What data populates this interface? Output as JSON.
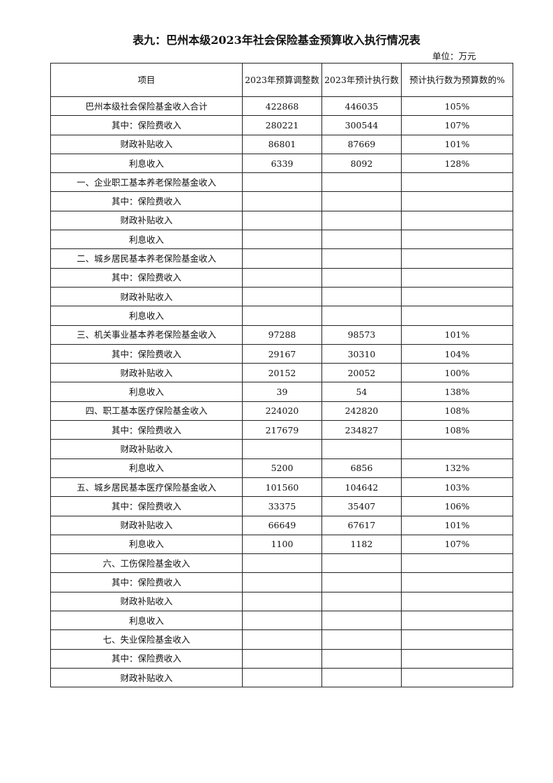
{
  "title": "表九：巴州本级2023年社会保险基金预算收入执行情况表",
  "unit": "单位：万元",
  "table": {
    "headers": [
      "项目",
      "2023年预算调整数",
      "2023年预计执行数",
      "预计执行数为预算数的%"
    ],
    "rows": [
      [
        "巴州本级社会保险基金收入合计",
        "422868",
        "446035",
        "105%"
      ],
      [
        "其中：保险费收入",
        "280221",
        "300544",
        "107%"
      ],
      [
        "财政补贴收入",
        "86801",
        "87669",
        "101%"
      ],
      [
        "利息收入",
        "6339",
        "8092",
        "128%"
      ],
      [
        "一、企业职工基本养老保险基金收入",
        "",
        "",
        ""
      ],
      [
        "其中：保险费收入",
        "",
        "",
        ""
      ],
      [
        "财政补贴收入",
        "",
        "",
        ""
      ],
      [
        "利息收入",
        "",
        "",
        ""
      ],
      [
        "二、城乡居民基本养老保险基金收入",
        "",
        "",
        ""
      ],
      [
        "其中：保险费收入",
        "",
        "",
        ""
      ],
      [
        "财政补贴收入",
        "",
        "",
        ""
      ],
      [
        "利息收入",
        "",
        "",
        ""
      ],
      [
        "三、机关事业基本养老保险基金收入",
        "97288",
        "98573",
        "101%"
      ],
      [
        "其中：保险费收入",
        "29167",
        "30310",
        "104%"
      ],
      [
        "财政补贴收入",
        "20152",
        "20052",
        "100%"
      ],
      [
        "利息收入",
        "39",
        "54",
        "138%"
      ],
      [
        "四、职工基本医疗保险基金收入",
        "224020",
        "242820",
        "108%"
      ],
      [
        "其中：保险费收入",
        "217679",
        "234827",
        "108%"
      ],
      [
        "财政补贴收入",
        "",
        "",
        ""
      ],
      [
        "利息收入",
        "5200",
        "6856",
        "132%"
      ],
      [
        "五、城乡居民基本医疗保险基金收入",
        "101560",
        "104642",
        "103%"
      ],
      [
        "其中：保险费收入",
        "33375",
        "35407",
        "106%"
      ],
      [
        "财政补贴收入",
        "66649",
        "67617",
        "101%"
      ],
      [
        "利息收入",
        "1100",
        "1182",
        "107%"
      ],
      [
        "六、工伤保险基金收入",
        "",
        "",
        ""
      ],
      [
        "其中：保险费收入",
        "",
        "",
        ""
      ],
      [
        "财政补贴收入",
        "",
        "",
        ""
      ],
      [
        "利息收入",
        "",
        "",
        ""
      ],
      [
        "七、失业保险基金收入",
        "",
        "",
        ""
      ],
      [
        "其中：保险费收入",
        "",
        "",
        ""
      ],
      [
        "财政补贴收入",
        "",
        "",
        ""
      ]
    ]
  }
}
